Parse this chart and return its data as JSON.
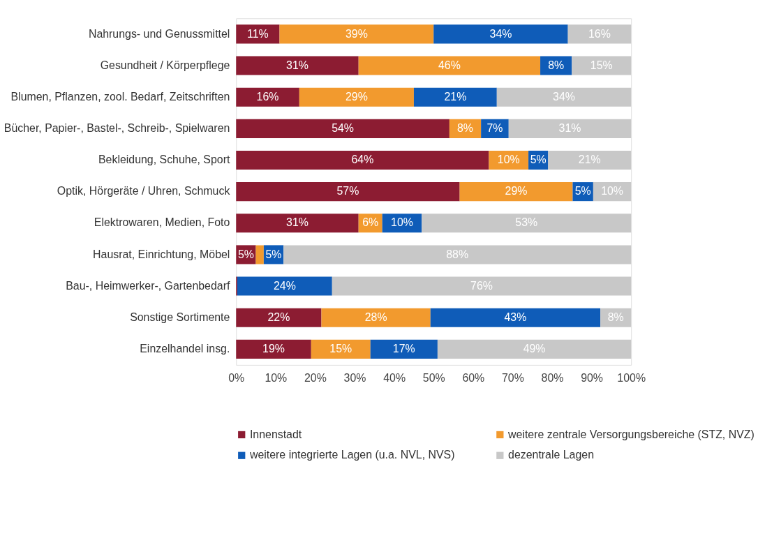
{
  "chart_data": {
    "type": "bar",
    "orientation": "horizontal",
    "stacked": true,
    "categories": [
      "Nahrungs- und Genussmittel",
      "Gesundheit / Körperpflege",
      "Blumen, Pflanzen, zool. Bedarf, Zeitschriften",
      "Bücher, Papier-, Bastel-, Schreib-, Spielwaren",
      "Bekleidung, Schuhe, Sport",
      "Optik, Hörgeräte / Uhren, Schmuck",
      "Elektrowaren, Medien, Foto",
      "Hausrat, Einrichtung, Möbel",
      "Bau-, Heimwerker-, Gartenbedarf",
      "Sonstige Sortimente",
      "Einzelhandel insg."
    ],
    "series": [
      {
        "name": "Innenstadt",
        "color": "#8c1c32",
        "values": [
          11,
          31,
          16,
          54,
          64,
          56.6,
          31,
          5,
          0.3,
          21.6,
          19
        ],
        "value_labels": [
          "11%",
          "31%",
          "16%",
          "54%",
          "64%",
          "57%",
          "31%",
          "5%",
          null,
          "22%",
          "19%"
        ]
      },
      {
        "name": "weitere zentrale Versorgungsbereiche (STZ, NVZ)",
        "color": "#f29a2e",
        "values": [
          39,
          46,
          29,
          8,
          10,
          28.6,
          6,
          2,
          null,
          27.6,
          15
        ],
        "value_labels": [
          "39%",
          "46%",
          "29%",
          "8%",
          "10%",
          "29%",
          "6%",
          null,
          null,
          "28%",
          "15%"
        ]
      },
      {
        "name": "weitere integrierte Lagen (u.a. NVL, NVS)",
        "color": "#0f5cb8",
        "values": [
          34,
          8,
          21,
          7,
          5,
          5.2,
          10,
          5,
          24,
          43,
          17
        ],
        "value_labels": [
          "34%",
          "8%",
          "21%",
          "7%",
          "5%",
          "5%",
          "10%",
          "5%",
          "24%",
          "43%",
          "17%"
        ]
      },
      {
        "name": "dezentrale Lagen",
        "color": "#c8c8c8",
        "values": [
          16,
          15,
          34,
          31,
          21,
          9.6,
          53,
          88,
          75.7,
          7.8,
          49
        ],
        "value_labels": [
          "16%",
          "15%",
          "34%",
          "31%",
          "21%",
          "10%",
          "53%",
          "88%",
          "76%",
          "8%",
          "49%"
        ]
      }
    ],
    "xlim": [
      0,
      100
    ],
    "xticks": [
      {
        "value": 0,
        "label": "0%"
      },
      {
        "value": 10,
        "label": "10%"
      },
      {
        "value": 20,
        "label": "20%"
      },
      {
        "value": 30,
        "label": "30%"
      },
      {
        "value": 40,
        "label": "40%"
      },
      {
        "value": 50,
        "label": "50%"
      },
      {
        "value": 60,
        "label": "60%"
      },
      {
        "value": 70,
        "label": "70%"
      },
      {
        "value": 80,
        "label": "80%"
      },
      {
        "value": 90,
        "label": "90%"
      },
      {
        "value": 100,
        "label": "100%"
      }
    ],
    "grid": false,
    "legend": "bottom"
  }
}
